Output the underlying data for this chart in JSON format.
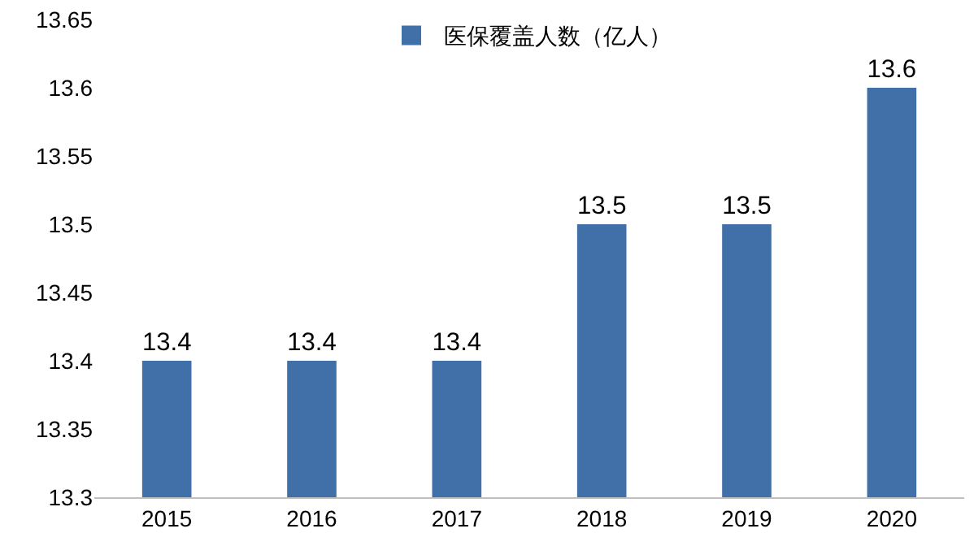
{
  "chart_data": {
    "type": "bar",
    "categories": [
      "2015",
      "2016",
      "2017",
      "2018",
      "2019",
      "2020"
    ],
    "series": [
      {
        "name": "医保覆盖人数（亿人）",
        "color": "#4170a9",
        "values": [
          13.4,
          13.4,
          13.4,
          13.5,
          13.5,
          13.6
        ]
      }
    ],
    "ylim": [
      13.3,
      13.65
    ],
    "yticks": [
      13.3,
      13.35,
      13.4,
      13.45,
      13.5,
      13.55,
      13.6,
      13.65
    ],
    "data_labels": true,
    "legend": "top",
    "grid": false
  }
}
